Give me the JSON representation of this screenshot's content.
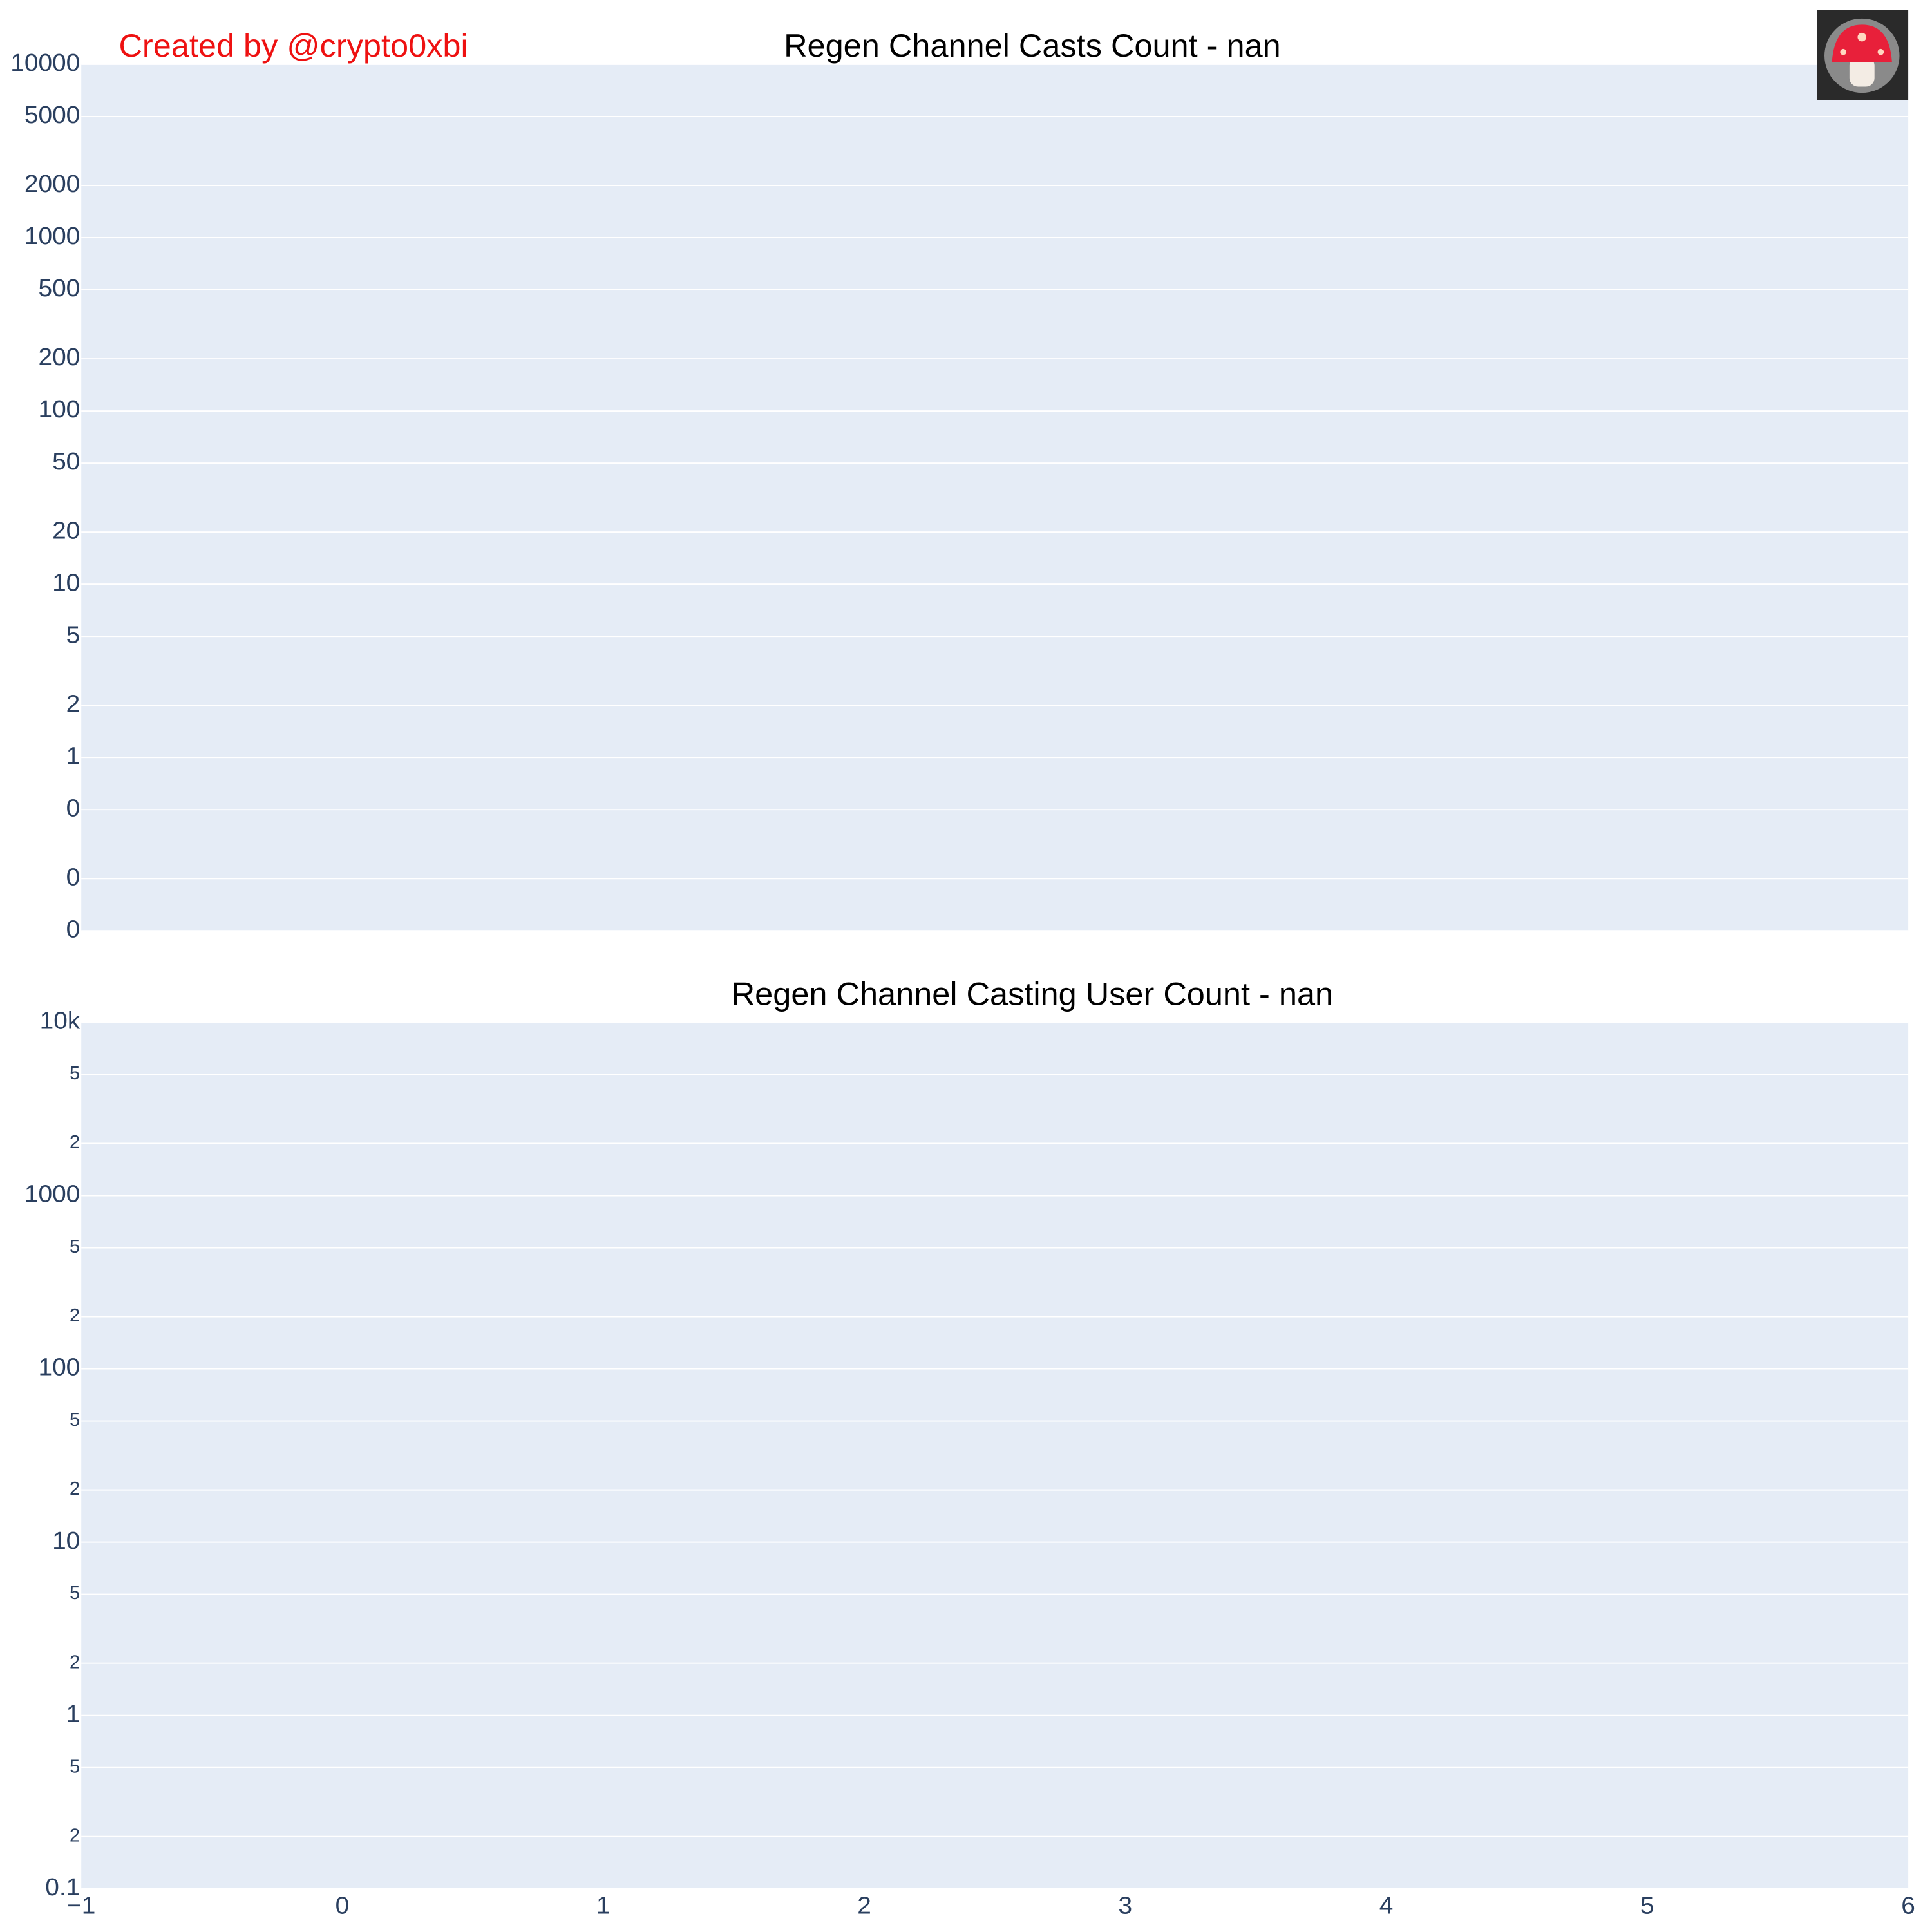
{
  "chart_data": [
    {
      "type": "line",
      "title": "Regen Channel Casts Count - nan",
      "annotation": "Created by @crypto0xbi",
      "log_y": true,
      "grid": true,
      "xlim": [
        -1,
        6
      ],
      "ylim": [
        0.1,
        10000
      ],
      "yticks": [
        10000,
        5000,
        2000,
        1000,
        500,
        200,
        100,
        50,
        20,
        10,
        5,
        2,
        1,
        {
          "value": 0.5,
          "label": "0"
        },
        {
          "value": 0.2,
          "label": "0"
        },
        {
          "value": 0.1,
          "label": "0"
        }
      ]
    },
    {
      "type": "line",
      "title": "Regen Channel Casting User Count - nan",
      "log_y": true,
      "grid": true,
      "xlim": [
        -1,
        6
      ],
      "xticks": [
        {
          "value": -1,
          "label": "−1"
        },
        0,
        1,
        2,
        3,
        4,
        5,
        6
      ],
      "ylim": [
        0.1,
        10000
      ],
      "yticks": [
        {
          "value": 10000,
          "label": "10k"
        },
        {
          "value": 5000,
          "label": "5"
        },
        {
          "value": 2000,
          "label": "2"
        },
        1000,
        {
          "value": 500,
          "label": "5"
        },
        {
          "value": 200,
          "label": "2"
        },
        100,
        {
          "value": 50,
          "label": "5"
        },
        {
          "value": 20,
          "label": "2"
        },
        10,
        {
          "value": 5,
          "label": "5"
        },
        {
          "value": 2,
          "label": "2"
        },
        1,
        {
          "value": 0.5,
          "label": "5"
        },
        {
          "value": 0.2,
          "label": "2"
        },
        0.1
      ]
    }
  ]
}
